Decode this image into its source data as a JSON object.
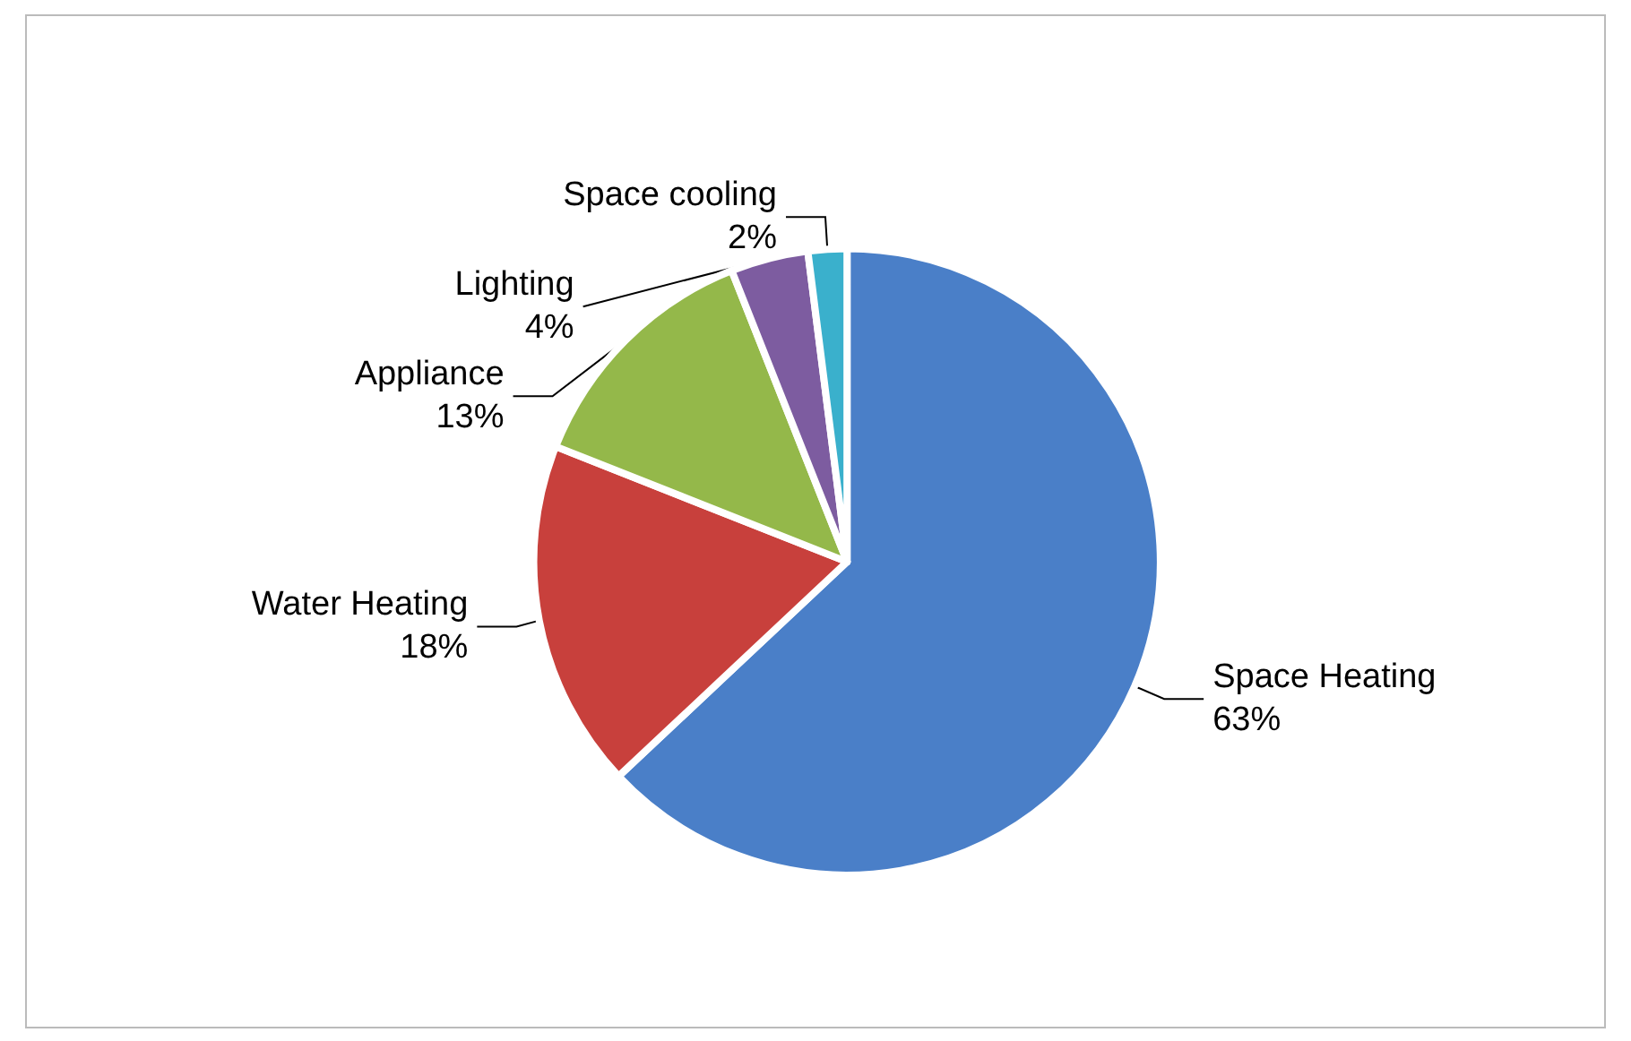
{
  "chart_data": {
    "type": "pie",
    "categories": [
      "Space Heating",
      "Water Heating",
      "Appliance",
      "Lighting",
      "Space cooling"
    ],
    "values": [
      63,
      18,
      13,
      4,
      2
    ],
    "colors": [
      "#4a7fc8",
      "#c8403c",
      "#94b84a",
      "#7d5ca0",
      "#3ab0cc"
    ],
    "value_labels": [
      "63%",
      "18%",
      "13%",
      "4%",
      "2%"
    ],
    "legend": false
  }
}
